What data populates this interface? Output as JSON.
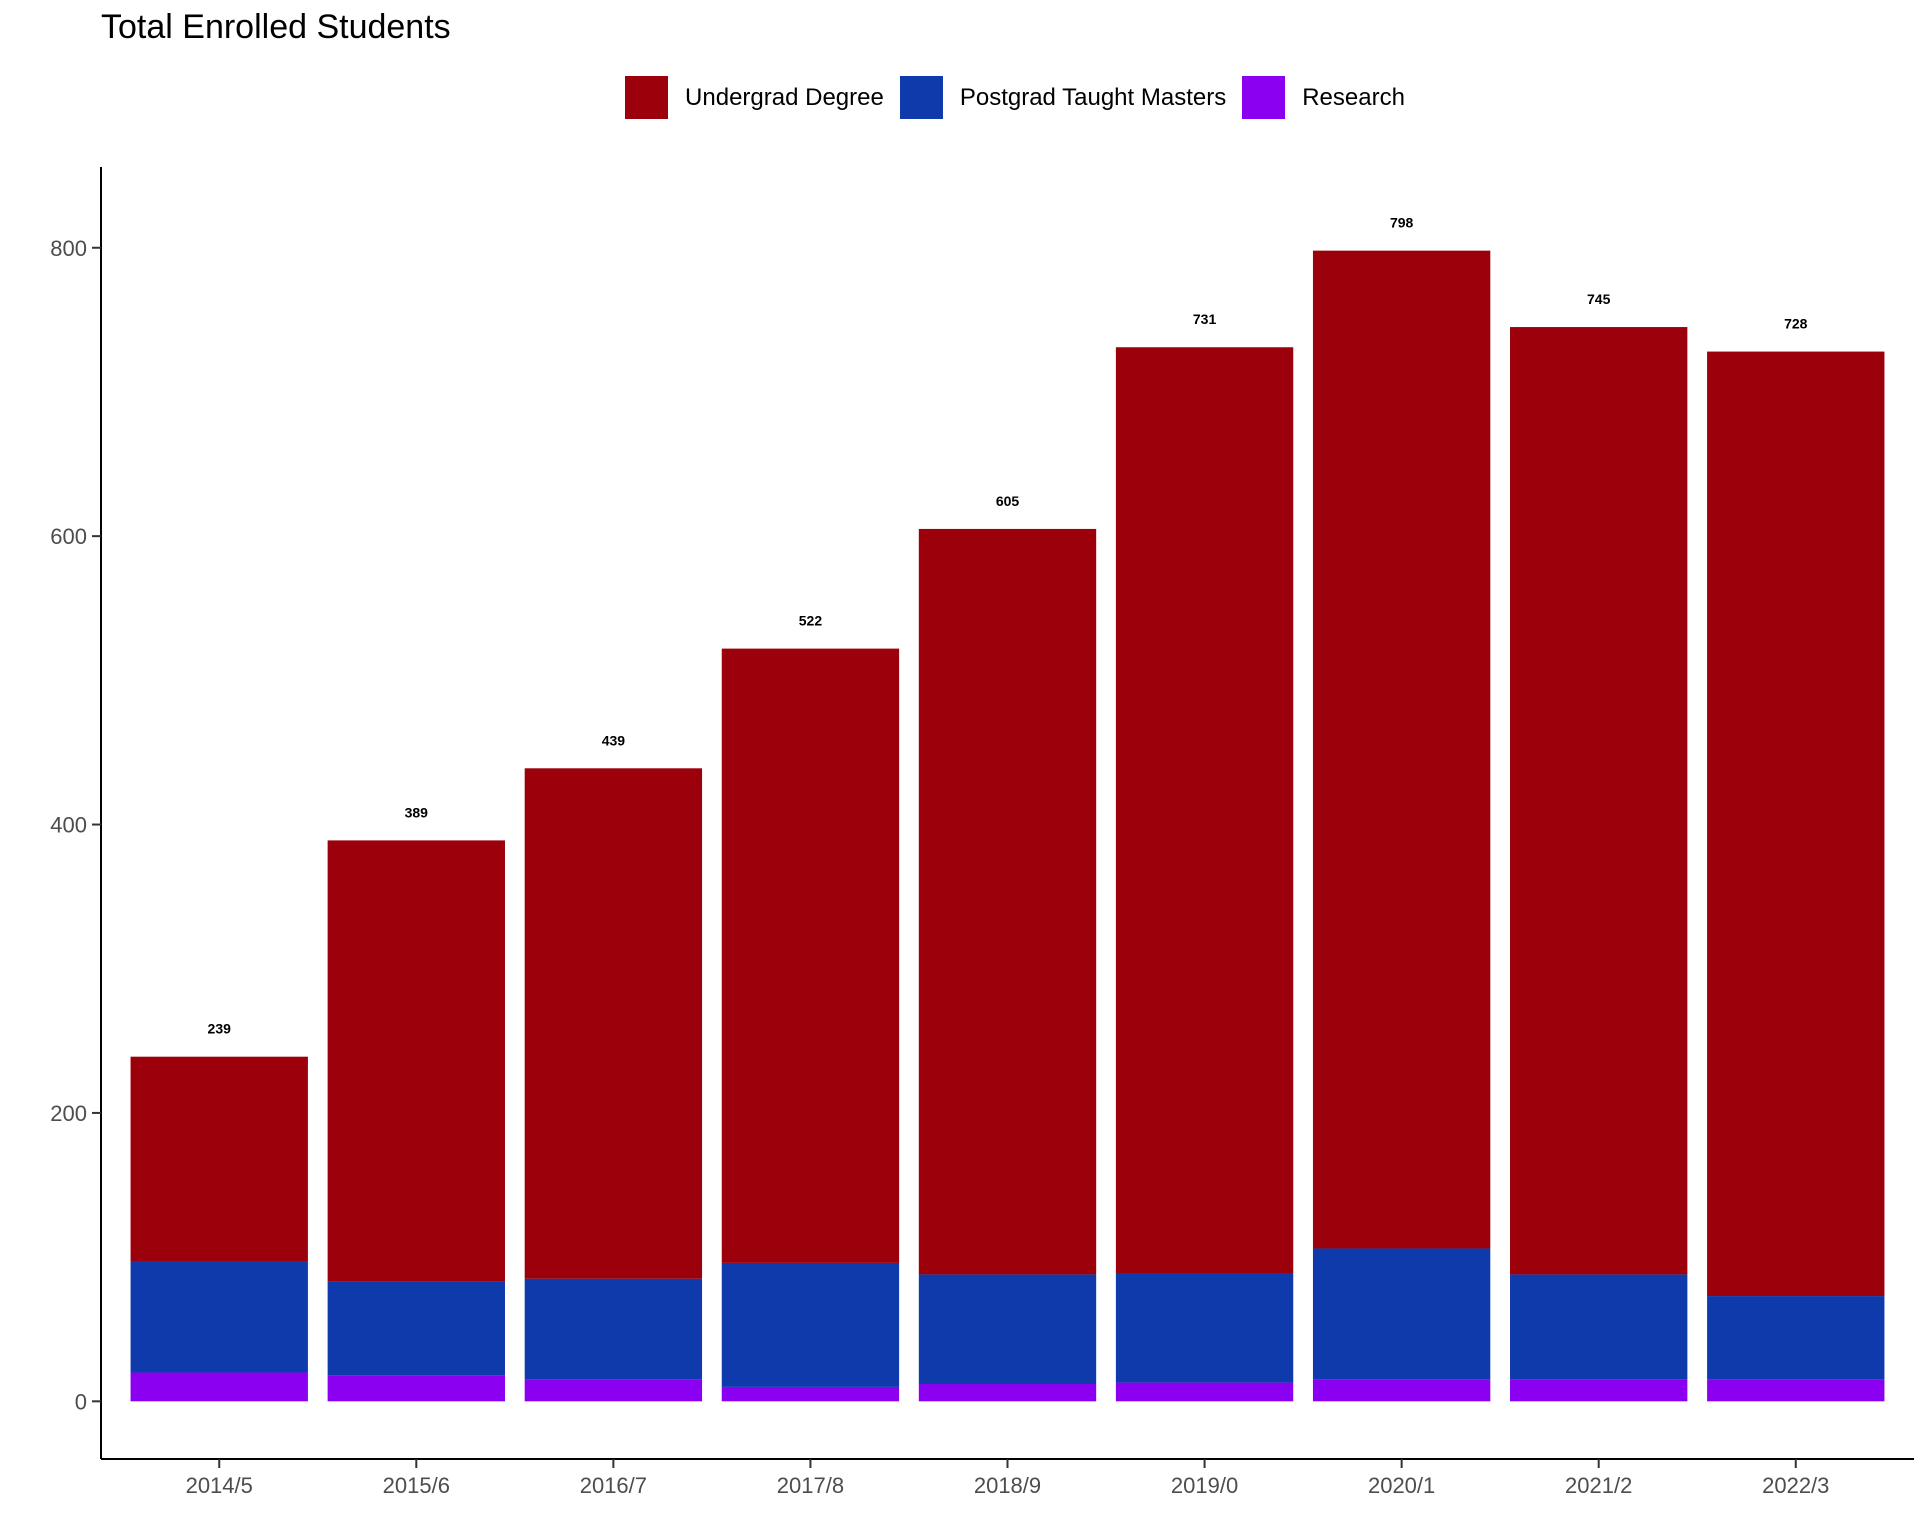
{
  "chart_data": {
    "type": "bar",
    "stacked": true,
    "title": "Total Enrolled Students",
    "xlabel": "",
    "ylabel": "",
    "categories": [
      "2014/5",
      "2015/6",
      "2016/7",
      "2017/8",
      "2018/9",
      "2019/0",
      "2020/1",
      "2021/2",
      "2022/3"
    ],
    "series": [
      {
        "name": "Research",
        "color": "#8b00f0",
        "values": [
          20,
          18,
          15,
          10,
          12,
          13,
          15,
          15,
          15
        ]
      },
      {
        "name": "Postgrad Taught Masters",
        "color": "#0f3aab",
        "values": [
          77,
          65,
          70,
          86,
          76,
          76,
          91,
          73,
          58
        ]
      },
      {
        "name": "Undergrad Degree",
        "color": "#9b000b",
        "values": [
          142,
          306,
          354,
          426,
          517,
          642,
          692,
          657,
          655
        ]
      }
    ],
    "totals": [
      239,
      389,
      439,
      522,
      605,
      731,
      798,
      745,
      728
    ],
    "legend_order": [
      "Undergrad Degree",
      "Postgrad Taught Masters",
      "Research"
    ],
    "legend_position": "top",
    "yticks": [
      0,
      200,
      400,
      600,
      800
    ],
    "ylim": [
      -40,
      856
    ],
    "grid": false
  }
}
